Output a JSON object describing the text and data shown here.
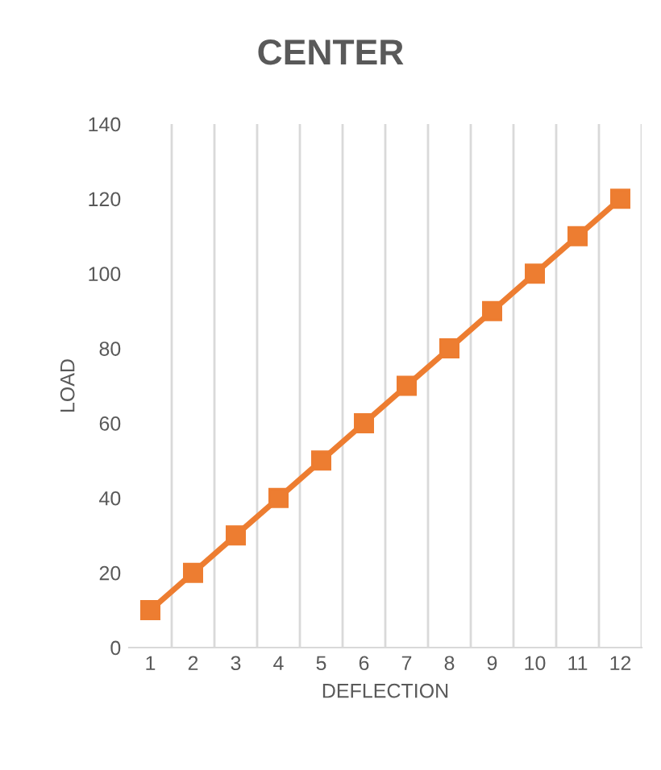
{
  "chart_data": {
    "type": "line",
    "title": "CENTER",
    "xlabel": "DEFLECTION",
    "ylabel": "LOAD",
    "categories": [
      "1",
      "2",
      "3",
      "4",
      "5",
      "6",
      "7",
      "8",
      "9",
      "10",
      "11",
      "12"
    ],
    "series": [
      {
        "color": "#ed7d31",
        "values": [
          10,
          20,
          30,
          40,
          50,
          60,
          70,
          80,
          90,
          100,
          110,
          120
        ]
      }
    ],
    "ylim": [
      0,
      140
    ],
    "yticks": [
      0,
      20,
      40,
      60,
      80,
      100,
      120,
      140
    ],
    "grid": "x",
    "marker": "square",
    "line_style": "solid",
    "legend": false
  }
}
